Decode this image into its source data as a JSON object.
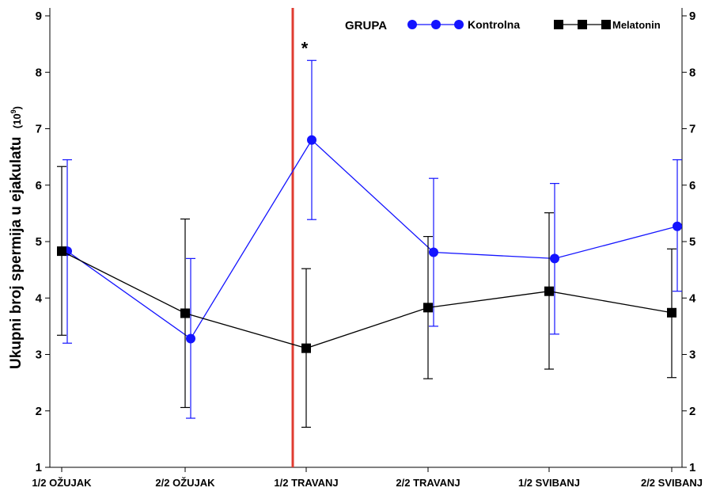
{
  "chart_data": {
    "type": "line",
    "ylabel_main": "Ukupni broj spermija u ejakulatu",
    "ylabel_unit_base": "(10",
    "ylabel_unit_exp": "9",
    "ylabel_unit_close": ")",
    "ylim": [
      1,
      9
    ],
    "yticks": [
      "1",
      "2",
      "3",
      "4",
      "5",
      "6",
      "7",
      "8",
      "9"
    ],
    "categories": [
      "1/2 OŽUJAK",
      "2/2 OŽUJAK",
      "1/2 TRAVANJ",
      "2/2 TRAVANJ",
      "1/2 SVIBANJ",
      "2/2 SVIBANJ"
    ],
    "legend_title": "GRUPA",
    "legend_position": "top-right",
    "grid": false,
    "marker_text": "*",
    "marker_category_index": 2,
    "vertical_line_category_index": 2,
    "vertical_line_color": "#e03c31",
    "series": [
      {
        "name": "Kontrolna",
        "color": "#1414ff",
        "marker": "circle",
        "values": [
          4.83,
          3.28,
          6.8,
          4.81,
          4.7,
          5.27
        ],
        "upper": [
          6.45,
          4.7,
          8.21,
          6.12,
          6.03,
          6.45
        ],
        "lower": [
          3.2,
          1.87,
          5.39,
          3.5,
          3.36,
          4.12
        ]
      },
      {
        "name": "Melatonin",
        "color": "#000000",
        "marker": "square",
        "values": [
          4.83,
          3.73,
          3.11,
          3.83,
          4.12,
          3.74
        ],
        "upper": [
          6.33,
          5.4,
          4.52,
          5.09,
          5.51,
          4.87
        ],
        "lower": [
          3.34,
          2.06,
          1.71,
          2.57,
          2.74,
          2.59
        ]
      }
    ]
  }
}
